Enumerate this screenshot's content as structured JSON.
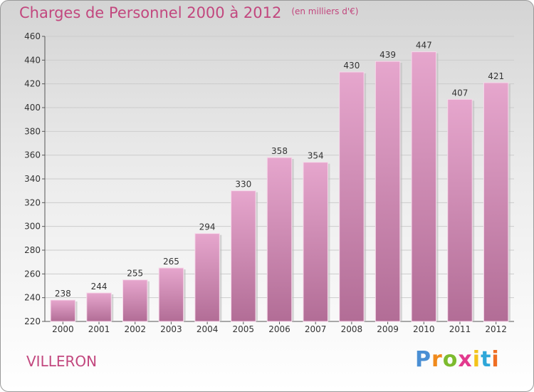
{
  "header": {
    "title": "Charges de Personnel 2000 à 2012",
    "subtitle": "(en milliers d'€)"
  },
  "footer": {
    "city": "VILLERON",
    "logo_letters": [
      "P",
      "r",
      "o",
      "x",
      "i",
      "t",
      "i"
    ],
    "logo_colors": [
      "#4a8fd4",
      "#f08a1c",
      "#7dbb2e",
      "#e23a8e",
      "#f3c31a",
      "#2fa7d9",
      "#ef6e23"
    ]
  },
  "colors": {
    "accent": "#c2477e",
    "bar_top": "#e6a6cd",
    "bar_bottom": "#b26d96",
    "grid": "#cccccc"
  },
  "chart_data": {
    "type": "bar",
    "title": "Charges de Personnel 2000 à 2012",
    "xlabel": "",
    "ylabel": "",
    "categories": [
      "2000",
      "2001",
      "2002",
      "2003",
      "2004",
      "2005",
      "2006",
      "2007",
      "2008",
      "2009",
      "2010",
      "2011",
      "2012"
    ],
    "values": [
      238,
      244,
      255,
      265,
      294,
      330,
      358,
      354,
      430,
      439,
      447,
      407,
      421
    ],
    "ylim": [
      220,
      460
    ],
    "yticks": [
      220,
      240,
      260,
      280,
      300,
      320,
      340,
      360,
      380,
      400,
      420,
      440,
      460
    ],
    "grid": true
  }
}
